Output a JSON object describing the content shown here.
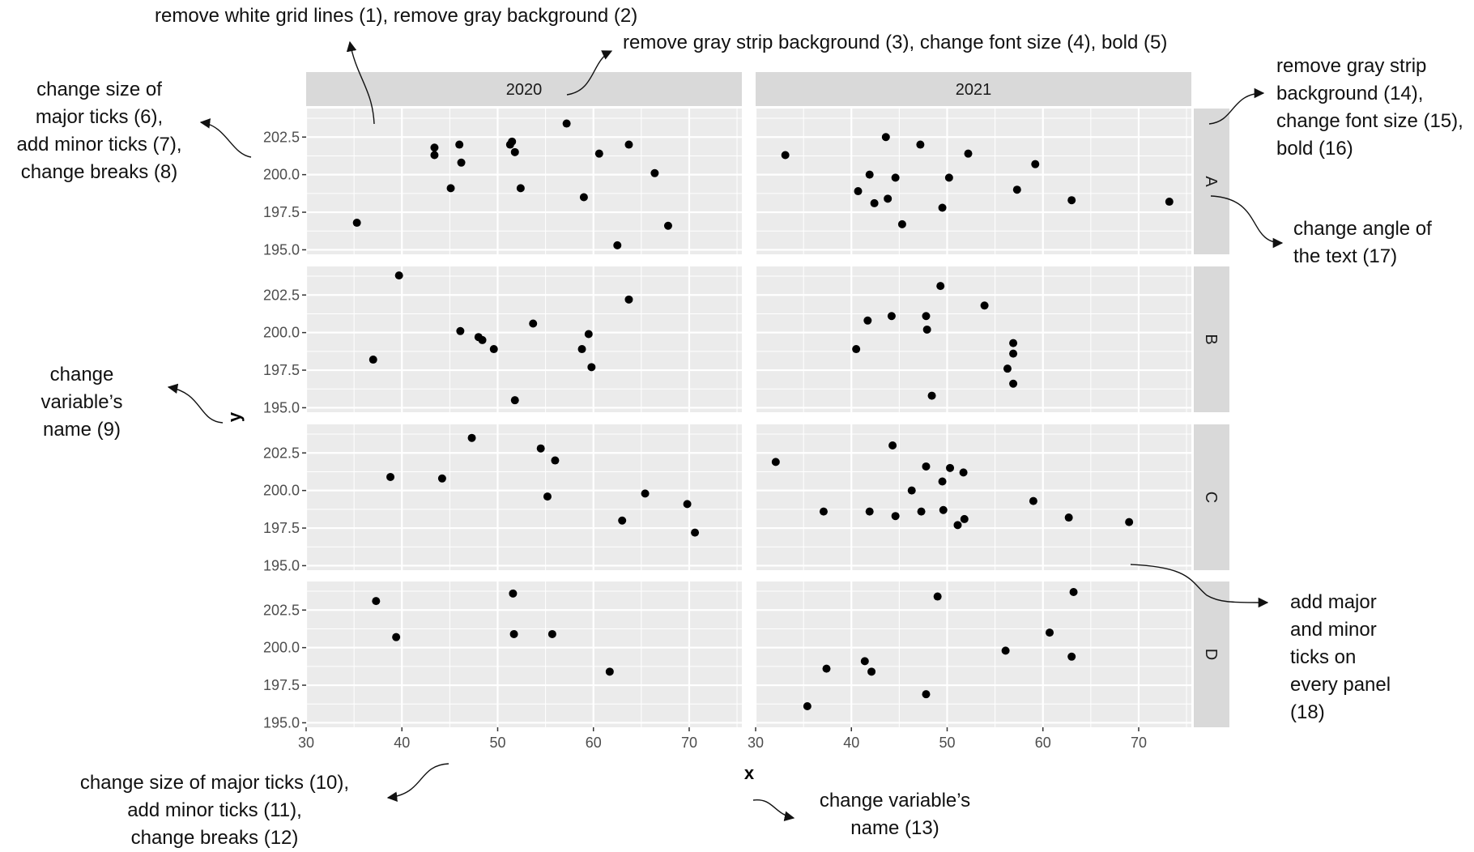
{
  "chart_data": {
    "type": "scatter",
    "facet_cols": [
      "2020",
      "2021"
    ],
    "facet_rows": [
      "A",
      "B",
      "C",
      "D"
    ],
    "xlabel": "x",
    "ylabel": "y",
    "xlim": [
      30,
      75.5
    ],
    "ylim": [
      194.7,
      204.4
    ],
    "x_ticks": [
      "30",
      "40",
      "50",
      "60",
      "70"
    ],
    "x_tick_values": [
      30,
      40,
      50,
      60,
      70
    ],
    "y_ticks": [
      "195.0",
      "197.5",
      "200.0",
      "202.5"
    ],
    "y_tick_values": [
      195.0,
      197.5,
      200.0,
      202.5
    ],
    "grid": true,
    "point_color": "#000000",
    "panel_background": "#ebebeb",
    "strip_background": "#d9d9d9",
    "gridline_color": "#ffffff",
    "panels": [
      {
        "col": "2020",
        "row": "A",
        "points": [
          [
            35.3,
            196.8
          ],
          [
            43.4,
            201.8
          ],
          [
            43.4,
            201.3
          ],
          [
            45.1,
            199.1
          ],
          [
            46.0,
            202.0
          ],
          [
            46.2,
            200.8
          ],
          [
            51.3,
            202.0
          ],
          [
            51.5,
            202.2
          ],
          [
            51.8,
            201.5
          ],
          [
            52.4,
            199.1
          ],
          [
            57.2,
            203.4
          ],
          [
            59.0,
            198.5
          ],
          [
            60.6,
            201.4
          ],
          [
            62.5,
            195.3
          ],
          [
            63.7,
            202.0
          ],
          [
            66.4,
            200.1
          ],
          [
            67.8,
            196.6
          ]
        ]
      },
      {
        "col": "2021",
        "row": "A",
        "points": [
          [
            33.1,
            201.3
          ],
          [
            40.7,
            198.9
          ],
          [
            41.9,
            200.0
          ],
          [
            42.4,
            198.1
          ],
          [
            43.6,
            202.5
          ],
          [
            43.8,
            198.4
          ],
          [
            44.6,
            199.8
          ],
          [
            45.3,
            196.7
          ],
          [
            47.2,
            202.0
          ],
          [
            49.5,
            197.8
          ],
          [
            50.2,
            199.8
          ],
          [
            52.2,
            201.4
          ],
          [
            57.3,
            199.0
          ],
          [
            59.2,
            200.7
          ],
          [
            63.0,
            198.3
          ],
          [
            73.2,
            198.2
          ]
        ]
      },
      {
        "col": "2020",
        "row": "B",
        "points": [
          [
            37.0,
            198.2
          ],
          [
            39.7,
            203.8
          ],
          [
            46.1,
            200.1
          ],
          [
            48.0,
            199.7
          ],
          [
            48.4,
            199.5
          ],
          [
            49.6,
            198.9
          ],
          [
            53.7,
            200.6
          ],
          [
            51.8,
            195.5
          ],
          [
            58.8,
            198.9
          ],
          [
            59.5,
            199.9
          ],
          [
            59.8,
            197.7
          ],
          [
            63.7,
            202.2
          ]
        ]
      },
      {
        "col": "2021",
        "row": "B",
        "points": [
          [
            40.5,
            198.9
          ],
          [
            41.7,
            200.8
          ],
          [
            44.2,
            201.1
          ],
          [
            47.8,
            201.1
          ],
          [
            47.9,
            200.2
          ],
          [
            48.4,
            195.8
          ],
          [
            49.3,
            203.1
          ],
          [
            53.9,
            201.8
          ],
          [
            56.3,
            197.6
          ],
          [
            56.9,
            199.3
          ],
          [
            56.9,
            198.6
          ],
          [
            56.9,
            196.6
          ]
        ]
      },
      {
        "col": "2020",
        "row": "C",
        "points": [
          [
            38.8,
            200.9
          ],
          [
            44.2,
            200.8
          ],
          [
            47.3,
            203.5
          ],
          [
            54.5,
            202.8
          ],
          [
            55.2,
            199.6
          ],
          [
            56.0,
            202.0
          ],
          [
            63.0,
            198.0
          ],
          [
            65.4,
            199.8
          ],
          [
            69.8,
            199.1
          ],
          [
            70.6,
            197.2
          ]
        ]
      },
      {
        "col": "2021",
        "row": "C",
        "points": [
          [
            32.1,
            201.9
          ],
          [
            37.1,
            198.6
          ],
          [
            41.9,
            198.6
          ],
          [
            44.3,
            203.0
          ],
          [
            44.6,
            198.3
          ],
          [
            46.3,
            200.0
          ],
          [
            47.3,
            198.6
          ],
          [
            47.8,
            201.6
          ],
          [
            49.5,
            200.6
          ],
          [
            49.6,
            198.7
          ],
          [
            50.3,
            201.5
          ],
          [
            51.1,
            197.7
          ],
          [
            51.7,
            201.2
          ],
          [
            51.8,
            198.1
          ],
          [
            59.0,
            199.3
          ],
          [
            62.7,
            198.2
          ],
          [
            69.0,
            197.9
          ]
        ]
      },
      {
        "col": "2020",
        "row": "D",
        "points": [
          [
            37.3,
            203.1
          ],
          [
            39.4,
            200.7
          ],
          [
            51.6,
            203.6
          ],
          [
            51.7,
            200.9
          ],
          [
            55.7,
            200.9
          ],
          [
            61.7,
            198.4
          ]
        ]
      },
      {
        "col": "2021",
        "row": "D",
        "points": [
          [
            35.4,
            196.1
          ],
          [
            37.4,
            198.6
          ],
          [
            41.4,
            199.1
          ],
          [
            42.1,
            198.4
          ],
          [
            47.8,
            196.9
          ],
          [
            49.0,
            203.4
          ],
          [
            56.1,
            199.8
          ],
          [
            60.7,
            201.0
          ],
          [
            63.0,
            199.4
          ],
          [
            63.2,
            203.7
          ]
        ]
      }
    ]
  },
  "annotations": [
    {
      "name": "annotation-grid-background",
      "text": "remove white grid lines (1), remove gray background (2)"
    },
    {
      "name": "annotation-strip-top",
      "text": "remove gray strip background (3), change font size (4), bold  (5)"
    },
    {
      "name": "annotation-strip-right",
      "text": "remove gray strip\nbackground (14),\nchange font size (15),\nbold (16)"
    },
    {
      "name": "annotation-y-ticks",
      "text": "change size of\nmajor ticks (6),\nadd minor ticks (7),\nchange breaks (8)"
    },
    {
      "name": "annotation-strip-angle",
      "text": "change angle of\nthe text (17)"
    },
    {
      "name": "annotation-y-name",
      "text": "change\nvariable’s\nname (9)"
    },
    {
      "name": "annotation-panel-ticks",
      "text": "add major\nand minor\nticks on\nevery panel\n(18)"
    },
    {
      "name": "annotation-x-ticks",
      "text": "change size of major ticks (10),\nadd minor ticks (11),\nchange breaks (12)"
    },
    {
      "name": "annotation-x-name",
      "text": "change variable’s\nname (13)"
    }
  ]
}
